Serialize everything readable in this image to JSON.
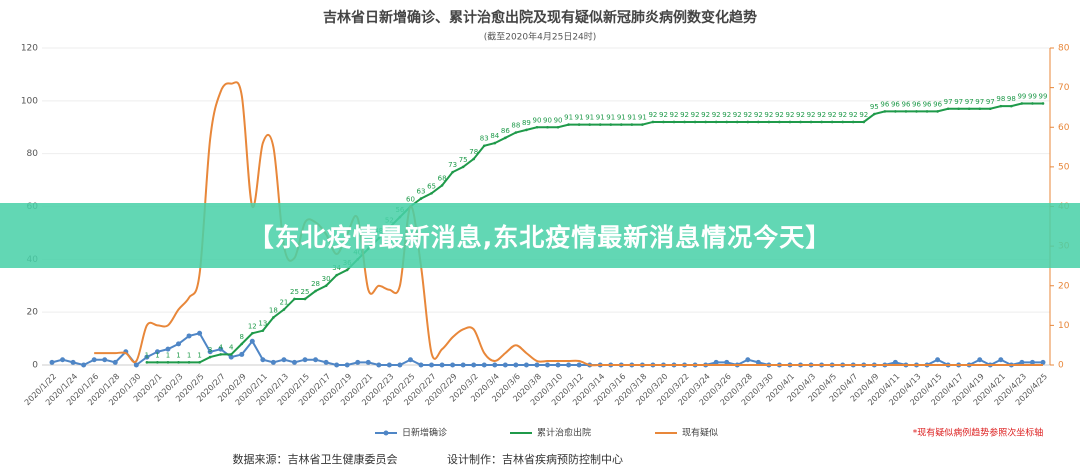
{
  "chart_data": {
    "type": "line",
    "title": "吉林省日新增确诊、累计治愈出院及现有疑似新冠肺炎病例数变化趋势",
    "subtitle": "(截至2020年4月25日24时)",
    "note": "*现有疑似病例趋势参照次坐标轴",
    "source": "数据来源：吉林省卫生健康委员会",
    "credit": "设计制作：吉林省疾病预防控制中心",
    "categories": [
      "2020/1/22",
      null,
      "2020/1/24",
      null,
      "2020/1/26",
      null,
      "2020/1/28",
      null,
      "2020/1/30",
      null,
      "2020/2/1",
      null,
      "2020/2/3",
      null,
      "2020/2/5",
      null,
      "2020/2/7",
      null,
      "2020/2/9",
      null,
      "2020/2/11",
      null,
      "2020/2/13",
      null,
      "2020/2/15",
      null,
      "2020/2/17",
      null,
      "2020/2/19",
      null,
      "2020/2/21",
      null,
      "2020/2/23",
      null,
      "2020/2/25",
      null,
      "2020/2/27",
      null,
      "2020/2/29",
      null,
      "2020/3/2",
      null,
      "2020/3/4",
      null,
      "2020/3/6",
      null,
      "2020/3/8",
      null,
      "2020/3/10",
      null,
      "2020/3/12",
      null,
      "2020/3/14",
      null,
      "2020/3/16",
      null,
      "2020/3/18",
      null,
      "2020/3/20",
      null,
      "2020/3/22",
      null,
      "2020/3/24",
      null,
      "2020/3/26",
      null,
      "2020/3/28",
      null,
      "2020/3/30",
      null,
      "2020/4/1",
      null,
      "2020/4/3",
      null,
      "2020/4/5",
      null,
      "2020/4/7",
      null,
      "2020/4/9",
      null,
      "2020/4/11",
      null,
      "2020/4/13",
      null,
      "2020/4/15",
      null,
      "2020/4/17",
      null,
      "2020/4/19",
      null,
      "2020/4/21",
      null,
      "2020/4/23",
      null,
      "2020/4/25"
    ],
    "series": [
      {
        "name": "日新增确诊",
        "color": "#4f86c6",
        "markers": true,
        "labels": false,
        "values": [
          1,
          2,
          1,
          0,
          2,
          2,
          1,
          5,
          0,
          3,
          5,
          6,
          8,
          11,
          12,
          5,
          6,
          3,
          4,
          9,
          2,
          1,
          2,
          1,
          2,
          2,
          1,
          0,
          0,
          1,
          1,
          0,
          0,
          0,
          2,
          0,
          0,
          0,
          0,
          0,
          0,
          0,
          0,
          0,
          0,
          0,
          0,
          0,
          0,
          0,
          0,
          0,
          0,
          0,
          0,
          0,
          0,
          0,
          0,
          0,
          0,
          0,
          0,
          1,
          1,
          0,
          2,
          1,
          0,
          0,
          0,
          0,
          0,
          0,
          0,
          0,
          0,
          0,
          0,
          0,
          1,
          0,
          0,
          0,
          2,
          0,
          0,
          0,
          2,
          0,
          2,
          0,
          1,
          1,
          1
        ]
      },
      {
        "name": "累计治愈出院",
        "color": "#1f9a4a",
        "markers": false,
        "labels": true,
        "values": [
          null,
          null,
          null,
          null,
          null,
          null,
          null,
          null,
          null,
          1,
          1,
          1,
          1,
          1,
          1,
          3,
          4,
          4,
          8,
          12,
          13,
          18,
          21,
          25,
          25,
          28,
          30,
          34,
          36,
          40,
          44,
          48,
          52,
          56,
          60,
          63,
          65,
          68,
          73,
          75,
          78,
          83,
          84,
          86,
          88,
          89,
          90,
          90,
          90,
          91,
          91,
          91,
          91,
          91,
          91,
          91,
          91,
          92,
          92,
          92,
          92,
          92,
          92,
          92,
          92,
          92,
          92,
          92,
          92,
          92,
          92,
          92,
          92,
          92,
          92,
          92,
          92,
          92,
          95,
          96,
          96,
          96,
          96,
          96,
          96,
          97,
          97,
          97,
          97,
          97,
          98,
          98,
          99,
          99,
          99
        ]
      },
      {
        "name": "现有疑似",
        "color": "#e8873a",
        "markers": false,
        "labels": false,
        "axis": "y2",
        "smooth": true,
        "values": [
          null,
          null,
          null,
          null,
          3,
          3,
          3,
          3,
          1,
          10,
          10,
          10,
          14,
          17,
          23,
          57,
          69,
          71,
          68,
          40,
          56,
          55,
          30,
          27,
          36,
          36,
          33,
          28,
          33,
          37,
          19,
          20,
          19,
          20,
          40,
          25,
          3,
          4,
          7,
          9,
          9,
          3,
          1,
          3,
          5,
          3,
          1,
          1,
          1,
          1,
          1,
          0,
          0,
          0,
          0,
          0,
          0,
          0,
          0,
          0,
          0,
          0,
          0,
          0,
          0,
          0,
          0,
          0,
          0,
          0,
          0,
          0,
          0,
          0,
          0,
          0,
          0,
          0,
          0,
          0,
          0,
          0,
          0,
          0,
          0,
          0,
          0,
          0,
          0,
          0,
          0,
          0,
          0,
          0,
          0
        ]
      }
    ],
    "ylim": [
      0,
      120
    ],
    "yticks": [
      0,
      20,
      40,
      60,
      80,
      100,
      120
    ],
    "y2lim": [
      0,
      80
    ],
    "y2ticks": [
      0,
      10,
      20,
      30,
      40,
      50,
      60,
      70,
      80
    ],
    "grid": true
  },
  "banner": {
    "title": "【东北疫情最新消息,东北疫情最新消息情况今天】"
  }
}
